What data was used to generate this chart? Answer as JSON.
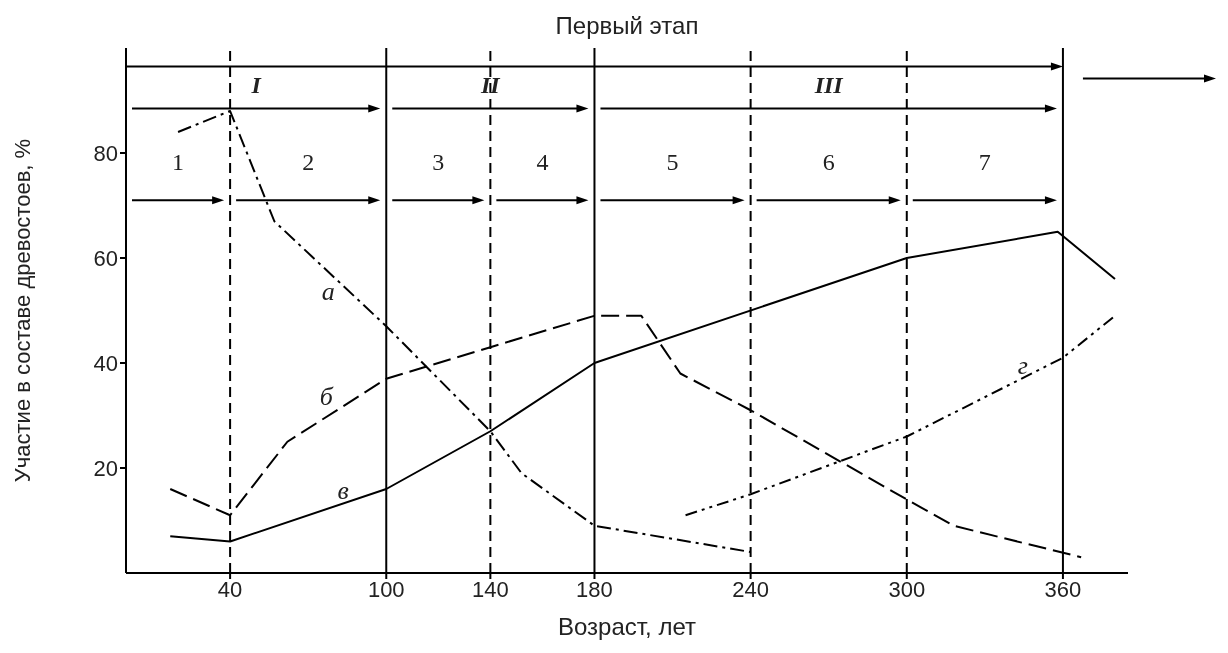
{
  "chart_data": {
    "type": "line",
    "title": "Первый этап",
    "xlabel": "Возраст, лет",
    "ylabel": "Участие в составе древостоев, %",
    "xlim": [
      0,
      385
    ],
    "ylim": [
      0,
      100
    ],
    "xticks": [
      40,
      100,
      140,
      180,
      240,
      300,
      360
    ],
    "yticks": [
      20,
      40,
      60,
      80
    ],
    "grid": false,
    "legend": false,
    "marker": "none",
    "series": [
      {
        "name": "а",
        "color": "#000000",
        "line_style": "dashed",
        "x": [
          20,
          40,
          57,
          100,
          140,
          152,
          180,
          240
        ],
        "values": [
          84,
          88,
          67,
          47,
          27,
          19,
          9,
          4
        ]
      },
      {
        "name": "б",
        "color": "#000000",
        "line_style": "dashed",
        "x": [
          17,
          40,
          62,
          100,
          140,
          180,
          198,
          213,
          240,
          300,
          318,
          367
        ],
        "values": [
          16,
          11,
          25,
          37,
          43,
          49,
          49,
          38,
          31,
          14,
          9,
          3
        ]
      },
      {
        "name": "в",
        "color": "#000000",
        "line_style": "solid",
        "x": [
          17,
          40,
          100,
          140,
          180,
          300,
          358,
          380
        ],
        "values": [
          7,
          6,
          16,
          27,
          40,
          60,
          65,
          56
        ]
      },
      {
        "name": "г",
        "color": "#000000",
        "line_style": "dashed",
        "x": [
          215,
          240,
          300,
          360,
          380
        ],
        "values": [
          11,
          15,
          26,
          41,
          49
        ]
      }
    ],
    "ref_lines": [
      {
        "axis": "x",
        "value": 40,
        "line_style": "dashed",
        "color": "#000000"
      },
      {
        "axis": "x",
        "value": 100,
        "line_style": "solid",
        "color": "#000000"
      },
      {
        "axis": "x",
        "value": 140,
        "line_style": "dashed",
        "color": "#000000"
      },
      {
        "axis": "x",
        "value": 180,
        "line_style": "solid",
        "color": "#000000"
      },
      {
        "axis": "x",
        "value": 240,
        "line_style": "dashed",
        "color": "#000000"
      },
      {
        "axis": "x",
        "value": 300,
        "line_style": "dashed",
        "color": "#000000"
      },
      {
        "axis": "x",
        "value": 360,
        "line_style": "solid",
        "color": "#000000"
      }
    ],
    "annotations": [
      "I",
      "II",
      "III",
      "1",
      "2",
      "3",
      "4",
      "5",
      "6",
      "7"
    ]
  }
}
